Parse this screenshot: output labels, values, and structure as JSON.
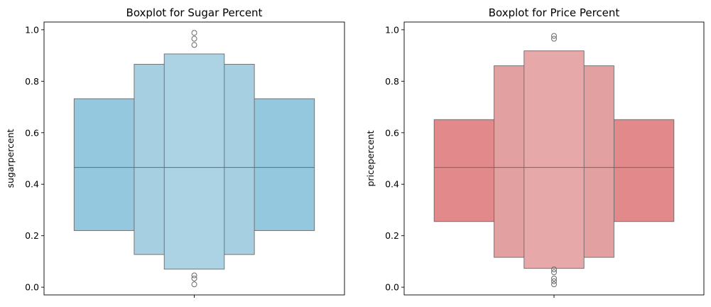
{
  "chart_data": [
    {
      "type": "boxenplot",
      "title": "Boxplot for Sugar Percent",
      "xlabel": "",
      "ylabel": "sugarpercent",
      "ylim": [
        -0.03,
        1.03
      ],
      "yticks": [
        0.0,
        0.2,
        0.4,
        0.6,
        0.8,
        1.0
      ],
      "ytick_labels": [
        "0.0",
        "0.2",
        "0.4",
        "0.6",
        "0.8",
        "1.0"
      ],
      "color": "#87ceeb",
      "median": 0.465,
      "levels": [
        {
          "low": 0.22,
          "high": 0.732,
          "width_frac": 0.8,
          "color": "#93c8df"
        },
        {
          "low": 0.127,
          "high": 0.866,
          "width_frac": 0.4,
          "color": "#a6d0e2"
        },
        {
          "low": 0.07,
          "high": 0.906,
          "width_frac": 0.2,
          "color": "#acd3e3"
        }
      ],
      "outliers": [
        0.011,
        0.034,
        0.046,
        0.941,
        0.965,
        0.988
      ]
    },
    {
      "type": "boxenplot",
      "title": "Boxplot for Price Percent",
      "xlabel": "",
      "ylabel": "pricepercent",
      "ylim": [
        -0.03,
        1.03
      ],
      "yticks": [
        0.0,
        0.2,
        0.4,
        0.6,
        0.8,
        1.0
      ],
      "ytick_labels": [
        "0.0",
        "0.2",
        "0.4",
        "0.6",
        "0.8",
        "1.0"
      ],
      "color": "#f08080",
      "median": 0.465,
      "levels": [
        {
          "low": 0.255,
          "high": 0.651,
          "width_frac": 0.8,
          "color": "#e28a8b"
        },
        {
          "low": 0.116,
          "high": 0.86,
          "width_frac": 0.4,
          "color": "#e3a0a0"
        },
        {
          "low": 0.073,
          "high": 0.918,
          "width_frac": 0.2,
          "color": "#e6a8a8"
        }
      ],
      "outliers": [
        0.011,
        0.023,
        0.034,
        0.058,
        0.069,
        0.965,
        0.976
      ]
    }
  ]
}
